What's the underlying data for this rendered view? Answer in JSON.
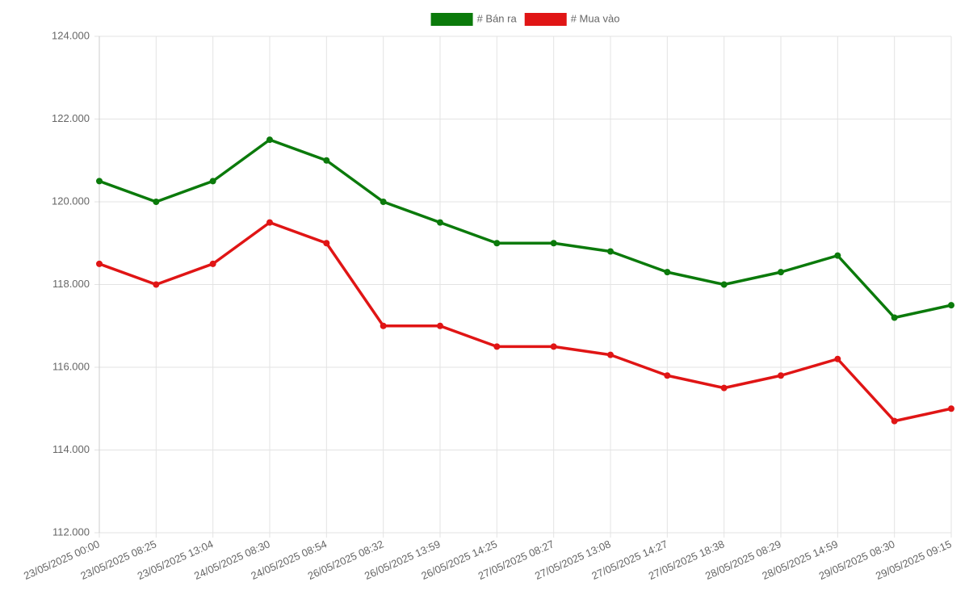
{
  "chart_data": {
    "type": "line",
    "categories": [
      "23/05/2025 00:00",
      "23/05/2025 08:25",
      "23/05/2025 13:04",
      "24/05/2025 08:30",
      "24/05/2025 08:54",
      "26/05/2025 08:32",
      "26/05/2025 13:59",
      "26/05/2025 14:25",
      "27/05/2025 08:27",
      "27/05/2025 13:08",
      "27/05/2025 14:27",
      "27/05/2025 18:38",
      "28/05/2025 08:29",
      "28/05/2025 14:59",
      "29/05/2025 08:30",
      "29/05/2025 09:15"
    ],
    "series": [
      {
        "name": "# Bán ra",
        "color": "#0b7a0b",
        "values": [
          120500,
          120000,
          120500,
          121500,
          121000,
          120000,
          119500,
          119000,
          119000,
          118800,
          118300,
          118000,
          118300,
          118700,
          117200,
          117500
        ]
      },
      {
        "name": "# Mua vào",
        "color": "#e01515",
        "values": [
          118500,
          118000,
          118500,
          119500,
          119000,
          117000,
          117000,
          116500,
          116500,
          116300,
          115800,
          115500,
          115800,
          116200,
          114700,
          115000
        ]
      }
    ],
    "ylim": [
      112000,
      124000
    ],
    "yticks": [
      {
        "value": 112000,
        "label": "112.000"
      },
      {
        "value": 114000,
        "label": "114.000"
      },
      {
        "value": 116000,
        "label": "116.000"
      },
      {
        "value": 118000,
        "label": "118.000"
      },
      {
        "value": 120000,
        "label": "120.000"
      },
      {
        "value": 122000,
        "label": "122.000"
      },
      {
        "value": 124000,
        "label": "124.000"
      }
    ],
    "grid": true,
    "legend": "top"
  }
}
